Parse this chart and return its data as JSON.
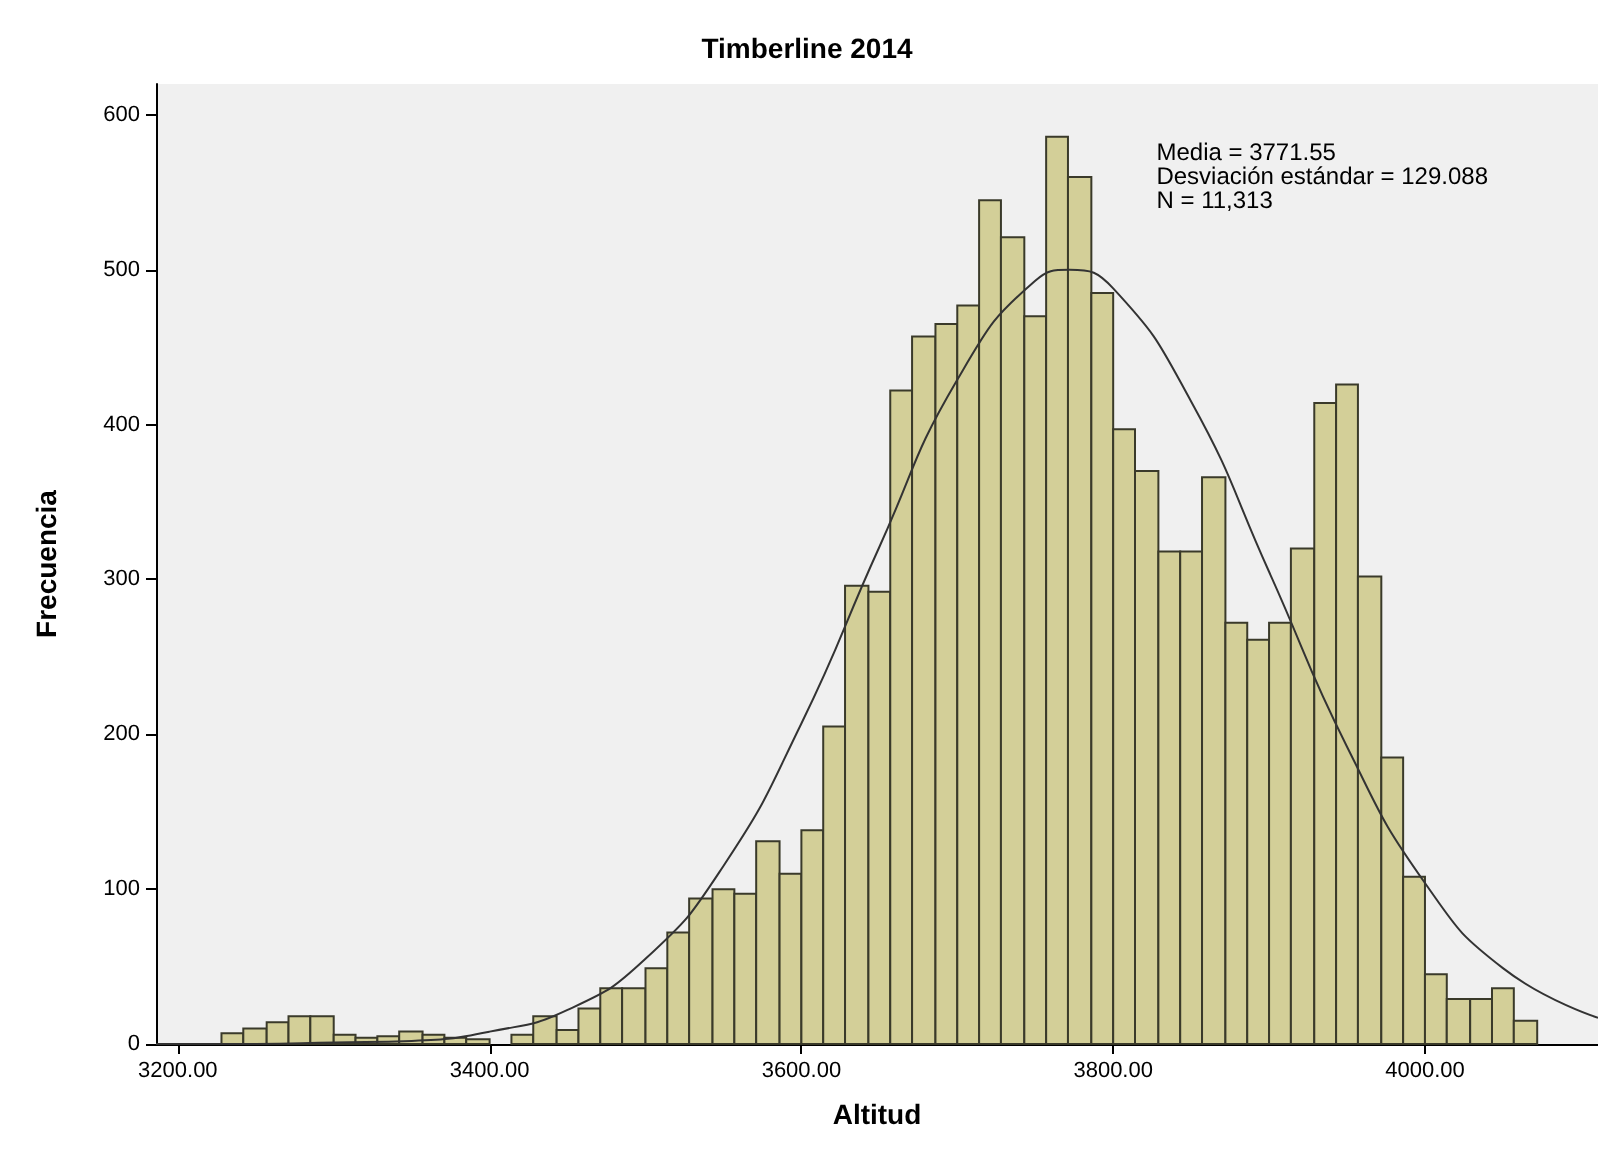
{
  "chart_data": {
    "type": "histogram",
    "title": "Timberline 2014",
    "xlabel": "Altitud",
    "ylabel": "Frecuencia",
    "bins": [
      3228,
      3242,
      3257,
      3271,
      3285,
      3300,
      3314,
      3328,
      3342,
      3357,
      3371,
      3385,
      3400,
      3414,
      3428,
      3443,
      3457,
      3471,
      3485,
      3500,
      3514,
      3528,
      3543,
      3557,
      3571,
      3586,
      3600,
      3614,
      3628,
      3643,
      3657,
      3671,
      3686,
      3700,
      3714,
      3728,
      3743,
      3757,
      3771,
      3786,
      3800,
      3814,
      3829,
      3843,
      3857,
      3872,
      3886,
      3900,
      3914,
      3929,
      3943,
      3957,
      3972,
      3986,
      4000,
      4014,
      4029,
      4043,
      4057,
      4072
    ],
    "values": [
      7,
      10,
      14,
      18,
      18,
      6,
      4,
      5,
      8,
      6,
      4,
      3,
      null,
      6,
      18,
      9,
      23,
      36,
      36,
      49,
      72,
      94,
      100,
      97,
      131,
      110,
      138,
      205,
      296,
      292,
      422,
      457,
      465,
      477,
      545,
      521,
      470,
      586,
      560,
      485,
      397,
      370,
      318,
      318,
      366,
      272,
      261,
      272,
      320,
      414,
      426,
      302,
      185,
      108,
      45,
      29,
      29,
      36,
      15
    ],
    "color": "#d3cf98",
    "series": [
      {
        "type": "line",
        "color": "#333333",
        "x": [
          3186,
          3250,
          3300,
          3350,
          3400,
          3450,
          3500,
          3550,
          3600,
          3650,
          3700,
          3750,
          3772,
          3800,
          3850,
          3900,
          3950,
          4000,
          4050,
          4111
        ],
        "values": [
          0,
          0,
          1,
          2,
          8,
          22,
          55,
          115,
          207,
          321,
          429,
          493,
          500,
          488,
          415,
          305,
          192,
          104,
          49,
          17
        ]
      }
    ],
    "xlim": [
      3186,
      4111
    ],
    "ylim": [
      0,
      620
    ],
    "xticks": [
      {
        "value": 3200,
        "label": "3200.00"
      },
      {
        "value": 3400,
        "label": "3400.00"
      },
      {
        "value": 3600,
        "label": "3600.00"
      },
      {
        "value": 3800,
        "label": "3800.00"
      },
      {
        "value": 4000,
        "label": "4000.00"
      }
    ],
    "yticks": [
      0,
      100,
      200,
      300,
      400,
      500,
      600
    ],
    "grid": false,
    "annotations": [
      "Media = 3771.55",
      "Desviación estándar = 129.088",
      "N = 11,313"
    ]
  }
}
